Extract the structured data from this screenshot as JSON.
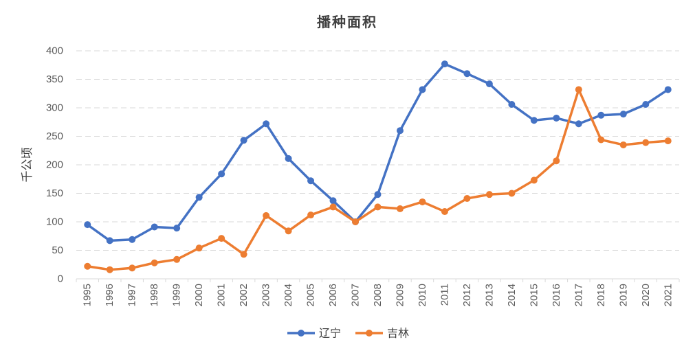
{
  "chart_data": {
    "type": "line",
    "title": "播种面积",
    "xlabel": "",
    "ylabel": "千公顷",
    "categories": [
      "1995",
      "1996",
      "1997",
      "1998",
      "1999",
      "2000",
      "2001",
      "2002",
      "2003",
      "2004",
      "2005",
      "2006",
      "2007",
      "2008",
      "2009",
      "2010",
      "2011",
      "2012",
      "2013",
      "2014",
      "2015",
      "2016",
      "2017",
      "2018",
      "2019",
      "2020",
      "2021"
    ],
    "ylim": [
      0,
      400
    ],
    "yticks": [
      0,
      50,
      100,
      150,
      200,
      250,
      300,
      350,
      400
    ],
    "grid": true,
    "legend": "bottom",
    "series": [
      {
        "name": "辽宁",
        "color": "#4472C4",
        "values": [
          95,
          67,
          69,
          91,
          89,
          143,
          184,
          243,
          272,
          211,
          172,
          137,
          100,
          148,
          260,
          332,
          377,
          360,
          342,
          306,
          278,
          282,
          272,
          287,
          289,
          306,
          332
        ]
      },
      {
        "name": "吉林",
        "color": "#ED7D31",
        "values": [
          22,
          16,
          19,
          28,
          34,
          54,
          71,
          43,
          111,
          84,
          112,
          126,
          100,
          126,
          123,
          135,
          118,
          141,
          148,
          150,
          173,
          207,
          332,
          244,
          235,
          239,
          242
        ]
      }
    ]
  }
}
